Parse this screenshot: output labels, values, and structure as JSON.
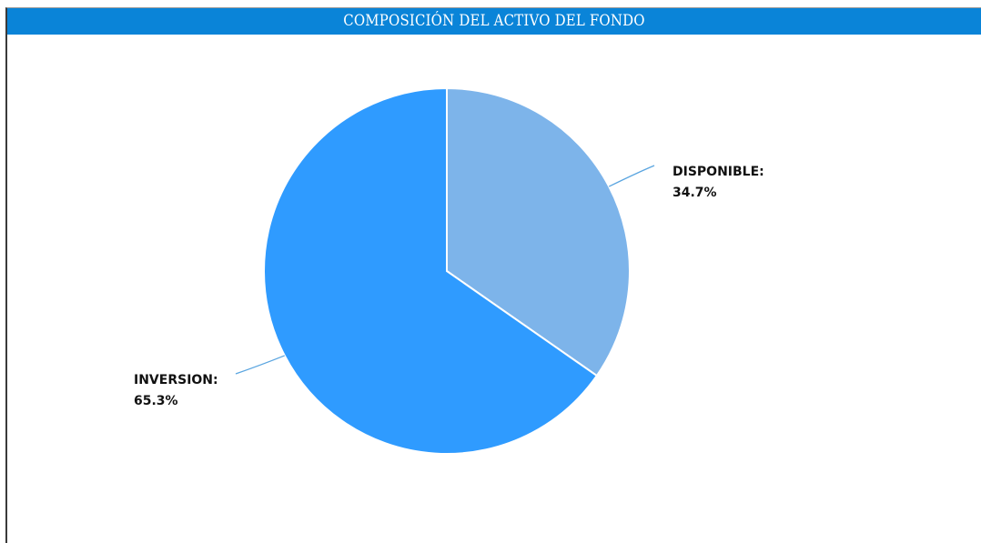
{
  "chart_data": {
    "type": "pie",
    "title": "COMPOSICIÓN DEL ACTIVO DEL FONDO",
    "slices": [
      {
        "label": "DISPONIBLE:",
        "value": 34.7,
        "value_text": "34.7%",
        "color": "#7db4ea"
      },
      {
        "label": "INVERSION:",
        "value": 65.3,
        "value_text": "65.3%",
        "color": "#2f9bff"
      }
    ],
    "start_angle": "12 o'clock",
    "direction": "clockwise",
    "leader_line_color": "#5aa5e0",
    "legend": "none"
  }
}
